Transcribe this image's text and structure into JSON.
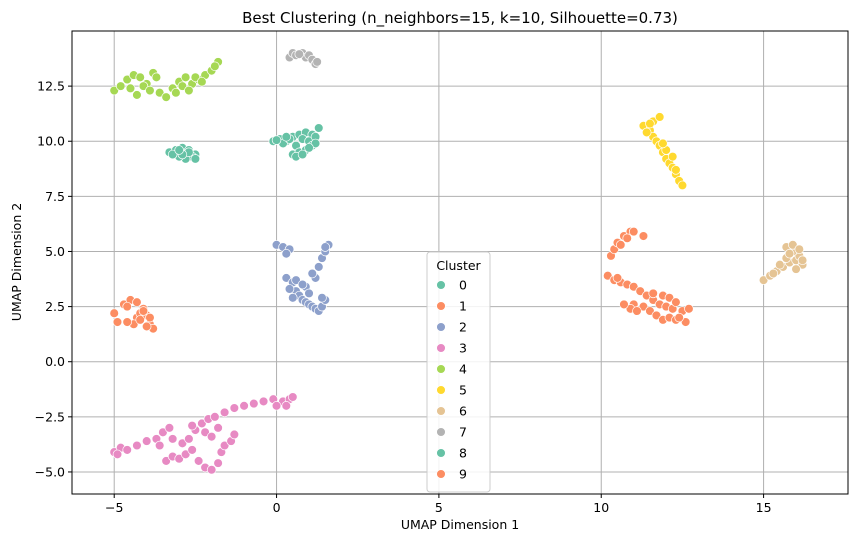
{
  "chart_data": {
    "type": "scatter",
    "title": "Best Clustering (n_neighbors=15, k=10, Silhouette=0.73)",
    "xlabel": "UMAP Dimension 1",
    "ylabel": "UMAP Dimension 2",
    "xlim": [
      -6.3,
      17.6
    ],
    "ylim": [
      -6.0,
      15.0
    ],
    "xticks": [
      -5,
      0,
      5,
      10,
      15
    ],
    "xtick_labels": [
      "−5",
      "0",
      "5",
      "10",
      "15"
    ],
    "yticks": [
      -5.0,
      -2.5,
      0.0,
      2.5,
      5.0,
      7.5,
      10.0,
      12.5
    ],
    "ytick_labels": [
      "−5.0",
      "−2.5",
      "0.0",
      "2.5",
      "5.0",
      "7.5",
      "10.0",
      "12.5"
    ],
    "grid": true,
    "legend": {
      "title": "Cluster",
      "placement": "lower-center"
    },
    "series": [
      {
        "name": "0",
        "color": "#66c2a5",
        "points": [
          [
            -0.1,
            10.0
          ],
          [
            0.1,
            10.1
          ],
          [
            0.3,
            10.0
          ],
          [
            0.5,
            10.2
          ],
          [
            0.7,
            10.3
          ],
          [
            0.9,
            10.4
          ],
          [
            1.1,
            10.3
          ],
          [
            1.3,
            10.6
          ],
          [
            0.2,
            9.9
          ],
          [
            0.6,
            9.8
          ],
          [
            0.8,
            10.1
          ],
          [
            1.0,
            10.0
          ],
          [
            1.2,
            10.2
          ],
          [
            0.4,
            10.1
          ],
          [
            0.5,
            9.4
          ],
          [
            0.7,
            9.5
          ],
          [
            0.9,
            9.6
          ],
          [
            1.1,
            9.8
          ],
          [
            1.2,
            9.9
          ],
          [
            0.6,
            9.3
          ],
          [
            0.8,
            9.4
          ],
          [
            1.0,
            9.7
          ],
          [
            0.3,
            10.2
          ],
          [
            0.0,
            10.05
          ]
        ]
      },
      {
        "name": "1",
        "color": "#fc8d62",
        "points": [
          [
            10.2,
            3.9
          ],
          [
            10.4,
            3.7
          ],
          [
            10.6,
            3.6
          ],
          [
            10.8,
            3.5
          ],
          [
            11.0,
            3.4
          ],
          [
            11.2,
            3.2
          ],
          [
            11.4,
            3.0
          ],
          [
            11.6,
            2.8
          ],
          [
            11.8,
            2.6
          ],
          [
            12.0,
            2.5
          ],
          [
            12.2,
            2.4
          ],
          [
            12.5,
            2.3
          ],
          [
            12.7,
            2.4
          ],
          [
            11.3,
            2.5
          ],
          [
            11.5,
            2.3
          ],
          [
            11.7,
            2.1
          ],
          [
            11.9,
            1.9
          ],
          [
            12.1,
            2.0
          ],
          [
            12.3,
            1.9
          ],
          [
            12.6,
            1.8
          ],
          [
            11.0,
            2.6
          ],
          [
            10.9,
            2.4
          ],
          [
            10.7,
            2.6
          ],
          [
            11.6,
            3.1
          ],
          [
            11.9,
            3.0
          ],
          [
            12.1,
            2.9
          ],
          [
            12.3,
            2.7
          ],
          [
            10.5,
            3.8
          ],
          [
            11.1,
            2.3
          ],
          [
            12.4,
            2.0
          ]
        ]
      },
      {
        "name": "2",
        "color": "#8da0cb",
        "points": [
          [
            0.0,
            5.3
          ],
          [
            0.2,
            5.2
          ],
          [
            0.4,
            5.1
          ],
          [
            0.3,
            4.9
          ],
          [
            0.3,
            3.8
          ],
          [
            0.5,
            3.6
          ],
          [
            0.6,
            3.2
          ],
          [
            0.7,
            3.0
          ],
          [
            0.8,
            2.8
          ],
          [
            0.9,
            2.7
          ],
          [
            1.0,
            2.6
          ],
          [
            1.1,
            2.5
          ],
          [
            1.2,
            2.4
          ],
          [
            1.3,
            2.3
          ],
          [
            1.4,
            2.5
          ],
          [
            1.5,
            2.8
          ],
          [
            1.2,
            3.8
          ],
          [
            1.1,
            4.0
          ],
          [
            1.3,
            4.3
          ],
          [
            1.4,
            4.7
          ],
          [
            1.5,
            5.0
          ],
          [
            1.6,
            5.3
          ],
          [
            0.4,
            3.3
          ],
          [
            0.9,
            3.4
          ],
          [
            1.0,
            3.1
          ],
          [
            0.5,
            2.9
          ],
          [
            0.6,
            3.7
          ],
          [
            0.8,
            3.5
          ],
          [
            1.4,
            2.9
          ],
          [
            1.5,
            5.2
          ]
        ]
      },
      {
        "name": "3",
        "color": "#e78ac3",
        "points": [
          [
            -5.0,
            -4.1
          ],
          [
            -4.8,
            -3.9
          ],
          [
            -4.6,
            -4.0
          ],
          [
            -4.3,
            -3.8
          ],
          [
            -4.0,
            -3.6
          ],
          [
            -3.7,
            -3.5
          ],
          [
            -3.5,
            -3.2
          ],
          [
            -3.3,
            -3.0
          ],
          [
            -3.2,
            -3.5
          ],
          [
            -3.4,
            -4.5
          ],
          [
            -3.2,
            -4.3
          ],
          [
            -3.0,
            -4.4
          ],
          [
            -2.8,
            -4.2
          ],
          [
            -2.6,
            -4.0
          ],
          [
            -2.4,
            -4.5
          ],
          [
            -2.2,
            -4.8
          ],
          [
            -2.0,
            -4.9
          ],
          [
            -1.8,
            -4.6
          ],
          [
            -1.7,
            -4.1
          ],
          [
            -1.6,
            -3.8
          ],
          [
            -1.4,
            -3.6
          ],
          [
            -1.3,
            -3.3
          ],
          [
            -2.9,
            -3.7
          ],
          [
            -2.7,
            -3.5
          ],
          [
            -2.5,
            -3.1
          ],
          [
            -2.3,
            -2.8
          ],
          [
            -2.1,
            -2.6
          ],
          [
            -1.9,
            -2.5
          ],
          [
            -1.6,
            -2.3
          ],
          [
            -1.3,
            -2.1
          ],
          [
            -1.0,
            -2.0
          ],
          [
            -0.7,
            -1.9
          ],
          [
            -0.4,
            -1.8
          ],
          [
            -0.1,
            -1.7
          ],
          [
            0.2,
            -1.8
          ],
          [
            0.4,
            -1.7
          ],
          [
            0.5,
            -1.6
          ],
          [
            0.3,
            -2.0
          ],
          [
            0.0,
            -2.0
          ],
          [
            -2.2,
            -3.2
          ],
          [
            -2.0,
            -3.4
          ],
          [
            -1.8,
            -3.0
          ],
          [
            -3.6,
            -3.8
          ],
          [
            -4.9,
            -4.2
          ],
          [
            -2.6,
            -2.9
          ]
        ]
      },
      {
        "name": "4",
        "color": "#a6d854",
        "points": [
          [
            -5.0,
            12.3
          ],
          [
            -4.8,
            12.5
          ],
          [
            -4.6,
            12.8
          ],
          [
            -4.4,
            13.0
          ],
          [
            -4.2,
            12.9
          ],
          [
            -4.0,
            12.6
          ],
          [
            -3.8,
            13.1
          ],
          [
            -3.6,
            12.2
          ],
          [
            -3.4,
            12.0
          ],
          [
            -3.2,
            12.4
          ],
          [
            -3.0,
            12.7
          ],
          [
            -2.8,
            12.9
          ],
          [
            -2.6,
            12.6
          ],
          [
            -2.4,
            12.8
          ],
          [
            -2.2,
            13.0
          ],
          [
            -2.0,
            13.2
          ],
          [
            -1.8,
            13.6
          ],
          [
            -4.3,
            12.1
          ],
          [
            -4.1,
            12.5
          ],
          [
            -3.9,
            12.3
          ],
          [
            -3.1,
            12.2
          ],
          [
            -2.9,
            12.5
          ],
          [
            -2.7,
            12.3
          ],
          [
            -2.5,
            12.9
          ],
          [
            -2.3,
            12.7
          ],
          [
            -1.9,
            13.4
          ],
          [
            -3.7,
            12.9
          ],
          [
            -4.5,
            12.4
          ]
        ]
      },
      {
        "name": "5",
        "color": "#ffd92f",
        "points": [
          [
            11.3,
            10.7
          ],
          [
            11.5,
            10.5
          ],
          [
            11.6,
            10.2
          ],
          [
            11.7,
            10.0
          ],
          [
            11.8,
            9.8
          ],
          [
            11.9,
            9.5
          ],
          [
            12.0,
            9.2
          ],
          [
            12.1,
            9.0
          ],
          [
            12.2,
            8.8
          ],
          [
            12.3,
            8.5
          ],
          [
            12.4,
            8.2
          ],
          [
            12.5,
            8.0
          ],
          [
            11.4,
            10.4
          ],
          [
            11.6,
            10.9
          ],
          [
            11.8,
            11.1
          ],
          [
            12.0,
            9.6
          ],
          [
            12.2,
            9.3
          ],
          [
            11.9,
            9.9
          ],
          [
            12.3,
            8.7
          ],
          [
            11.5,
            10.8
          ]
        ]
      },
      {
        "name": "6",
        "color": "#e5c494",
        "points": [
          [
            15.0,
            3.7
          ],
          [
            15.2,
            3.9
          ],
          [
            15.4,
            4.1
          ],
          [
            15.6,
            4.3
          ],
          [
            15.8,
            4.5
          ],
          [
            16.0,
            4.6
          ],
          [
            16.1,
            4.8
          ],
          [
            16.2,
            4.4
          ],
          [
            15.9,
            5.0
          ],
          [
            15.7,
            5.2
          ],
          [
            15.9,
            5.3
          ],
          [
            16.1,
            5.1
          ],
          [
            15.5,
            4.4
          ],
          [
            15.7,
            4.7
          ],
          [
            16.0,
            4.2
          ],
          [
            15.3,
            4.0
          ],
          [
            15.8,
            4.9
          ],
          [
            16.2,
            4.6
          ]
        ]
      },
      {
        "name": "7",
        "color": "#b3b3b3",
        "points": [
          [
            0.4,
            13.8
          ],
          [
            0.5,
            14.0
          ],
          [
            0.6,
            13.9
          ],
          [
            0.8,
            14.0
          ],
          [
            0.9,
            13.8
          ],
          [
            1.0,
            13.9
          ],
          [
            1.1,
            13.7
          ],
          [
            1.2,
            13.5
          ],
          [
            1.25,
            13.6
          ],
          [
            0.7,
            13.95
          ]
        ]
      },
      {
        "name": "8",
        "color": "#66c2a5",
        "points": [
          [
            -3.3,
            9.5
          ],
          [
            -3.1,
            9.6
          ],
          [
            -2.9,
            9.7
          ],
          [
            -2.7,
            9.6
          ],
          [
            -2.5,
            9.4
          ],
          [
            -2.6,
            9.3
          ],
          [
            -2.8,
            9.2
          ],
          [
            -3.0,
            9.3
          ],
          [
            -3.2,
            9.4
          ],
          [
            -2.7,
            9.5
          ],
          [
            -2.9,
            9.4
          ],
          [
            -2.5,
            9.2
          ],
          [
            -3.0,
            9.6
          ]
        ]
      },
      {
        "name": "9",
        "color": "#fc8d62",
        "points": [
          [
            -5.0,
            2.2
          ],
          [
            -4.9,
            1.8
          ],
          [
            -4.7,
            2.6
          ],
          [
            -4.5,
            2.8
          ],
          [
            -4.6,
            2.5
          ],
          [
            -4.3,
            2.0
          ],
          [
            -4.2,
            2.2
          ],
          [
            -4.1,
            2.4
          ],
          [
            -4.0,
            2.1
          ],
          [
            -3.9,
            1.7
          ],
          [
            -3.8,
            1.5
          ],
          [
            -4.4,
            1.7
          ],
          [
            -4.6,
            1.8
          ],
          [
            -4.2,
            1.9
          ],
          [
            -4.0,
            1.6
          ],
          [
            -3.9,
            2.0
          ],
          [
            -4.1,
            2.3
          ],
          [
            -4.3,
            2.7
          ],
          [
            10.3,
            4.8
          ],
          [
            10.4,
            5.1
          ],
          [
            10.5,
            5.4
          ],
          [
            10.7,
            5.7
          ],
          [
            10.9,
            5.9
          ],
          [
            11.0,
            5.9
          ],
          [
            11.3,
            5.7
          ],
          [
            10.6,
            5.3
          ],
          [
            10.8,
            5.6
          ]
        ]
      }
    ]
  }
}
